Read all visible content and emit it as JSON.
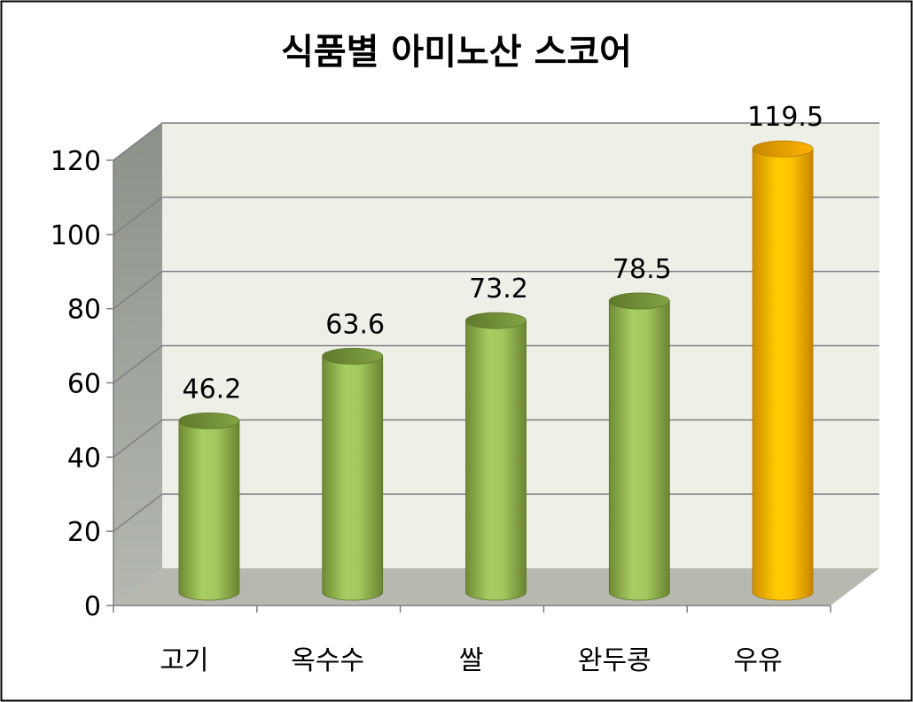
{
  "chart_data": {
    "type": "bar",
    "title": "식품별 아미노산 스코어",
    "categories": [
      "고기",
      "옥수수",
      "쌀",
      "완두콩",
      "우유"
    ],
    "values": [
      46.2,
      63.6,
      73.2,
      78.5,
      119.5
    ],
    "data_labels": [
      "46.2",
      "63.6",
      "73.2",
      "78.5",
      "119.5"
    ],
    "ylim": [
      0,
      120
    ],
    "yticks": [
      0,
      20,
      40,
      60,
      80,
      100,
      120
    ],
    "ytick_labels": [
      "0",
      "20",
      "40",
      "60",
      "80",
      "100",
      "120"
    ],
    "xlabel": "",
    "ylabel": "",
    "grid": true,
    "legend": "none",
    "bar_shape": "cylinder",
    "style": "3d",
    "colors": {
      "default_bar": "#9bbb59",
      "highlight_bar": "#ffc000",
      "highlight_index": 4,
      "wall": "#eef0e8",
      "side_wall": "#9ea39a",
      "floor": "#b7b9b1",
      "gridline": "#7f7f7f"
    }
  }
}
